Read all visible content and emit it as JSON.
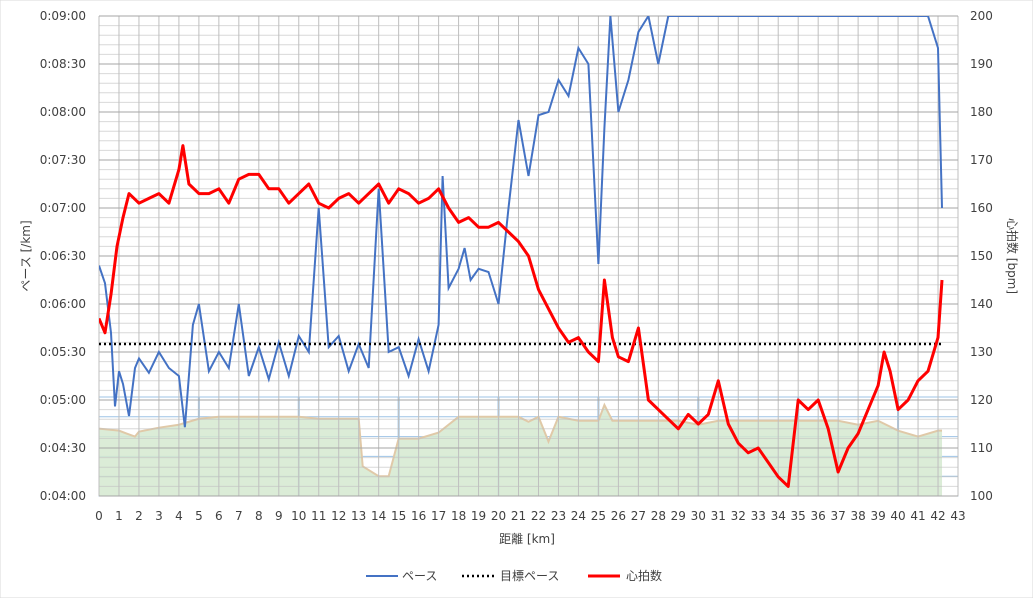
{
  "chart_data": {
    "type": "line",
    "xlabel": "距離 [km]",
    "ylabel_left": "ペース [/km]",
    "ylabel_right": "心拍数 [bpm]",
    "x_range": [
      0,
      43
    ],
    "x_ticks": [
      0,
      1,
      2,
      3,
      4,
      5,
      6,
      7,
      8,
      9,
      10,
      11,
      12,
      13,
      14,
      15,
      16,
      17,
      18,
      19,
      20,
      21,
      22,
      23,
      24,
      25,
      26,
      27,
      28,
      29,
      30,
      31,
      32,
      33,
      34,
      35,
      36,
      37,
      38,
      39,
      40,
      41,
      42,
      43
    ],
    "y_left_range_seconds": [
      240,
      540
    ],
    "y_left_ticks": [
      "0:04:00",
      "0:04:30",
      "0:05:00",
      "0:05:30",
      "0:06:00",
      "0:06:30",
      "0:07:00",
      "0:07:30",
      "0:08:00",
      "0:08:30",
      "0:09:00"
    ],
    "y_right_range": [
      100,
      200
    ],
    "y_right_ticks": [
      "100",
      "110",
      "120",
      "130",
      "140",
      "150",
      "160",
      "170",
      "180",
      "190",
      "200"
    ],
    "legend_position": "bottom",
    "colors": {
      "pace": "#4472c4",
      "target": "#000000",
      "heart_rate": "#ff0000",
      "elevation_fill": "#d5e9d0",
      "elevation_line": "#e0c9a8",
      "inset_grid": "#9dc3e6"
    },
    "series": [
      {
        "name": "ペース",
        "axis": "left",
        "x": [
          0,
          0.3,
          0.6,
          0.8,
          1.0,
          1.2,
          1.5,
          1.8,
          2.0,
          2.5,
          3.0,
          3.5,
          4.0,
          4.3,
          4.7,
          5.0,
          5.5,
          6.0,
          6.5,
          7.0,
          7.5,
          8.0,
          8.5,
          9.0,
          9.5,
          10.0,
          10.5,
          11.0,
          11.5,
          12.0,
          12.5,
          13.0,
          13.5,
          14.0,
          14.5,
          15.0,
          15.5,
          16.0,
          16.5,
          17.0,
          17.2,
          17.5,
          18.0,
          18.3,
          18.6,
          19.0,
          19.5,
          20.0,
          20.5,
          21.0,
          21.5,
          22.0,
          22.5,
          23.0,
          23.5,
          24.0,
          24.5,
          25.0,
          25.3,
          25.6,
          26.0,
          26.5,
          27.0,
          27.5,
          28.0,
          28.5,
          29.0,
          29.5,
          30.0,
          30.5,
          31.0,
          31.5,
          32.0,
          32.5,
          33.0,
          33.5,
          34.0,
          34.5,
          35.0,
          35.5,
          36.0,
          36.5,
          37.0,
          37.5,
          38.0,
          38.5,
          39.0,
          39.5,
          40.0,
          40.5,
          41.0,
          41.5,
          42.0,
          42.2
        ],
        "values": [
          384,
          373,
          342,
          296,
          318,
          310,
          290,
          320,
          326,
          317,
          330,
          320,
          315,
          283,
          347,
          360,
          318,
          330,
          320,
          360,
          315,
          333,
          313,
          336,
          315,
          340,
          330,
          420,
          333,
          340,
          318,
          335,
          320,
          432,
          330,
          333,
          315,
          338,
          318,
          347,
          440,
          370,
          382,
          395,
          375,
          382,
          380,
          360,
          420,
          475,
          440,
          478,
          480,
          500,
          490,
          520,
          510,
          385,
          470,
          540,
          480,
          500,
          530,
          540,
          510,
          540,
          540,
          540,
          540,
          540,
          540,
          540,
          540,
          540,
          540,
          540,
          540,
          540,
          540,
          540,
          540,
          540,
          540,
          540,
          540,
          540,
          540,
          540,
          540,
          540,
          540,
          540,
          520,
          420
        ]
      },
      {
        "name": "目標ペース",
        "axis": "left",
        "x": [
          0,
          42.2
        ],
        "values": [
          335,
          335
        ]
      },
      {
        "name": "心拍数",
        "axis": "right",
        "x": [
          0,
          0.3,
          0.6,
          0.9,
          1.2,
          1.5,
          2.0,
          2.5,
          3.0,
          3.5,
          4.0,
          4.2,
          4.5,
          5.0,
          5.5,
          6.0,
          6.5,
          7.0,
          7.5,
          8.0,
          8.5,
          9.0,
          9.5,
          10.0,
          10.5,
          11.0,
          11.5,
          12.0,
          12.5,
          13.0,
          13.5,
          14.0,
          14.5,
          15.0,
          15.5,
          16.0,
          16.5,
          17.0,
          17.5,
          18.0,
          18.5,
          19.0,
          19.5,
          20.0,
          20.5,
          21.0,
          21.5,
          22.0,
          22.5,
          23.0,
          23.5,
          24.0,
          24.5,
          25.0,
          25.3,
          25.7,
          26.0,
          26.5,
          27.0,
          27.5,
          28.0,
          28.5,
          29.0,
          29.5,
          30.0,
          30.5,
          31.0,
          31.5,
          32.0,
          32.5,
          33.0,
          33.5,
          34.0,
          34.5,
          35.0,
          35.5,
          36.0,
          36.5,
          37.0,
          37.5,
          38.0,
          38.5,
          39.0,
          39.3,
          39.6,
          40.0,
          40.5,
          41.0,
          41.5,
          42.0,
          42.2
        ],
        "values": [
          137,
          134,
          142,
          152,
          158,
          163,
          161,
          162,
          163,
          161,
          168,
          173,
          165,
          163,
          163,
          164,
          161,
          166,
          167,
          167,
          164,
          164,
          161,
          163,
          165,
          161,
          160,
          162,
          163,
          161,
          163,
          165,
          161,
          164,
          163,
          161,
          162,
          164,
          160,
          157,
          158,
          156,
          156,
          157,
          155,
          153,
          150,
          143,
          139,
          135,
          132,
          133,
          130,
          128,
          145,
          133,
          129,
          128,
          135,
          120,
          118,
          116,
          114,
          117,
          115,
          117,
          124,
          115,
          111,
          109,
          110,
          107,
          104,
          102,
          120,
          118,
          120,
          114,
          105,
          110,
          113,
          118,
          123,
          130,
          126,
          118,
          120,
          124,
          126,
          133,
          145
        ]
      }
    ],
    "elevation_inset": {
      "x": [
        0,
        1,
        1.8,
        2,
        3,
        4,
        5,
        6,
        7,
        8,
        9,
        10,
        11,
        12,
        13,
        13.2,
        14,
        14.5,
        15,
        16,
        17,
        18,
        19,
        20,
        20.5,
        21,
        21.5,
        22,
        22.5,
        23,
        24,
        25,
        25.3,
        25.7,
        26,
        27,
        28,
        29,
        30,
        31,
        32,
        33,
        34,
        35,
        36,
        37,
        38,
        39,
        40,
        41,
        42,
        42.2
      ],
      "values": [
        0.68,
        0.66,
        0.6,
        0.65,
        0.69,
        0.72,
        0.78,
        0.8,
        0.8,
        0.8,
        0.8,
        0.8,
        0.78,
        0.78,
        0.78,
        0.3,
        0.2,
        0.2,
        0.58,
        0.58,
        0.64,
        0.8,
        0.8,
        0.8,
        0.8,
        0.8,
        0.75,
        0.8,
        0.55,
        0.8,
        0.76,
        0.76,
        0.92,
        0.76,
        0.76,
        0.76,
        0.76,
        0.76,
        0.72,
        0.76,
        0.76,
        0.76,
        0.76,
        0.76,
        0.76,
        0.76,
        0.72,
        0.76,
        0.66,
        0.6,
        0.66,
        0.66
      ]
    }
  }
}
